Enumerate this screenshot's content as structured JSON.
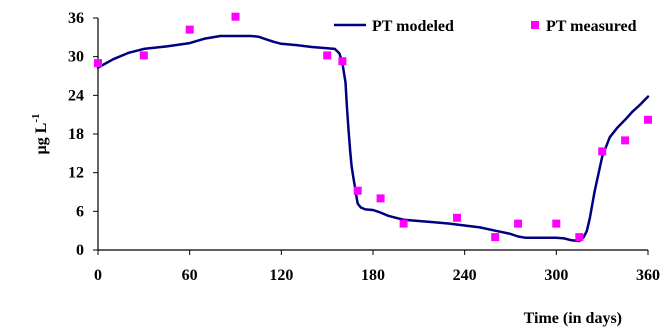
{
  "chart_data": {
    "type": "line",
    "xlabel": "Time (in days)",
    "ylabel": "µg L",
    "ylabel_sup": "-1",
    "xlim": [
      0,
      360
    ],
    "ylim": [
      0,
      36
    ],
    "xticks": [
      "0",
      "60",
      "120",
      "180",
      "240",
      "300",
      "360"
    ],
    "yticks": [
      "0",
      "6",
      "12",
      "18",
      "24",
      "30",
      "36"
    ],
    "grid": false,
    "legend_position": "top-right",
    "colors": {
      "modeled": "#000080",
      "measured": "#ff00ff"
    },
    "series": [
      {
        "name": "PT modeled",
        "style": "line",
        "x": [
          0,
          10,
          20,
          30,
          45,
          60,
          70,
          80,
          90,
          100,
          105,
          110,
          115,
          120,
          130,
          140,
          150,
          155,
          158,
          160,
          162,
          163,
          164,
          165,
          166,
          167,
          168,
          169,
          170,
          172,
          175,
          180,
          185,
          190,
          195,
          200,
          210,
          220,
          230,
          240,
          250,
          260,
          270,
          275,
          280,
          290,
          300,
          305,
          310,
          315,
          318,
          320,
          322,
          325,
          330,
          335,
          340,
          345,
          350,
          355,
          360
        ],
        "y": [
          28.3,
          29.6,
          30.6,
          31.2,
          31.6,
          32.1,
          32.8,
          33.2,
          33.2,
          33.2,
          33.1,
          32.7,
          32.3,
          32.0,
          31.8,
          31.5,
          31.3,
          31.2,
          30.5,
          29.0,
          26.0,
          22.0,
          18.5,
          15.5,
          13.0,
          11.5,
          10.0,
          8.5,
          7.2,
          6.6,
          6.3,
          6.2,
          5.8,
          5.3,
          5.0,
          4.7,
          4.5,
          4.3,
          4.1,
          3.8,
          3.5,
          3.0,
          2.5,
          2.1,
          1.9,
          1.9,
          1.9,
          1.8,
          1.5,
          1.4,
          2.0,
          3.0,
          5.0,
          9.0,
          14.5,
          17.5,
          19.0,
          20.2,
          21.5,
          22.6,
          23.8
        ]
      },
      {
        "name": "PT measured",
        "style": "scatter",
        "x": [
          0,
          30,
          60,
          90,
          150,
          160,
          170,
          185,
          200,
          235,
          260,
          275,
          300,
          315,
          330,
          345,
          360
        ],
        "y": [
          29.0,
          30.2,
          34.2,
          36.2,
          30.2,
          29.3,
          9.2,
          8.0,
          4.1,
          5.0,
          2.0,
          4.1,
          4.1,
          2.0,
          15.3,
          17.0,
          20.2
        ]
      }
    ]
  }
}
